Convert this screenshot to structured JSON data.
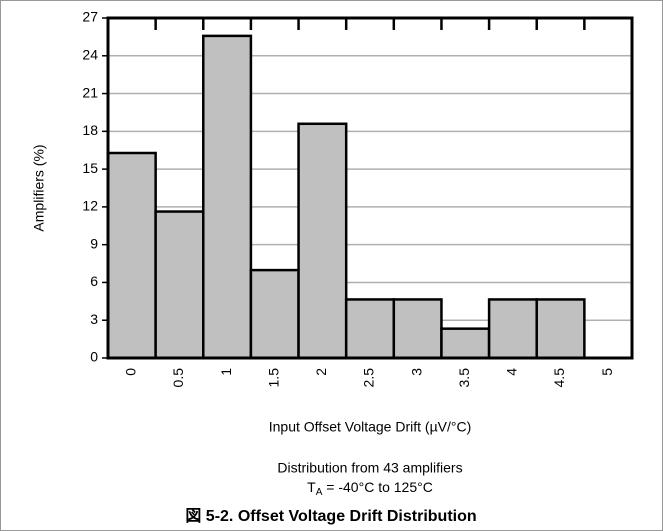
{
  "chart_data": {
    "type": "bar",
    "categories": [
      "0",
      "0.5",
      "1",
      "1.5",
      "2",
      "2.5",
      "3",
      "3.5",
      "4",
      "4.5",
      "5"
    ],
    "values": [
      16.28,
      11.63,
      25.58,
      6.98,
      18.6,
      4.65,
      4.65,
      2.33,
      4.65,
      4.65,
      0
    ],
    "color": "#c0c0c0",
    "ylabel": "Amplifiers (%)",
    "xlabel": "Input Offset Voltage Drift (µV/°C)",
    "annotation": "Distribution from 43 amplifiers",
    "condition": {
      "symbol": "T",
      "subscript": "A",
      "text": " = -40°C to 125°C"
    },
    "caption": "図 5-2. Offset Voltage Drift Distribution",
    "ylim": [
      0,
      27
    ],
    "yticks": [
      0,
      3,
      6,
      9,
      12,
      15,
      18,
      21,
      24,
      27
    ],
    "grid": true
  }
}
